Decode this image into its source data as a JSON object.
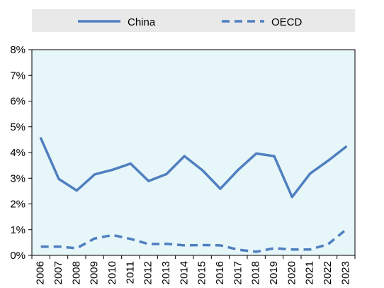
{
  "chart_data": {
    "type": "line",
    "title": "",
    "xlabel": "",
    "ylabel": "",
    "categories": [
      "2006",
      "2007",
      "2008",
      "2009",
      "2010",
      "2011",
      "2012",
      "2013",
      "2014",
      "2015",
      "2016",
      "2017",
      "2018",
      "2019",
      "2020",
      "2021",
      "2022",
      "2023"
    ],
    "series": [
      {
        "name": "China",
        "style": "solid",
        "values": [
          4.55,
          2.97,
          2.52,
          3.15,
          3.33,
          3.57,
          2.89,
          3.16,
          3.86,
          3.31,
          2.59,
          3.33,
          3.96,
          3.86,
          2.27,
          3.18,
          3.68,
          4.22
        ]
      },
      {
        "name": "OECD",
        "style": "dashed",
        "values": [
          0.34,
          0.34,
          0.28,
          0.66,
          0.79,
          0.64,
          0.44,
          0.45,
          0.39,
          0.4,
          0.39,
          0.22,
          0.14,
          0.28,
          0.23,
          0.23,
          0.43,
          1.0
        ]
      }
    ],
    "ylim": [
      0,
      8
    ],
    "yticks": [
      "0%",
      "1%",
      "2%",
      "3%",
      "4%",
      "5%",
      "6%",
      "7%",
      "8%"
    ],
    "plot_background": "#e6f6f9",
    "line_color": "#4f7fbf",
    "legend_background": "#e9e9e9",
    "legend_placement": "top",
    "grid": false
  }
}
